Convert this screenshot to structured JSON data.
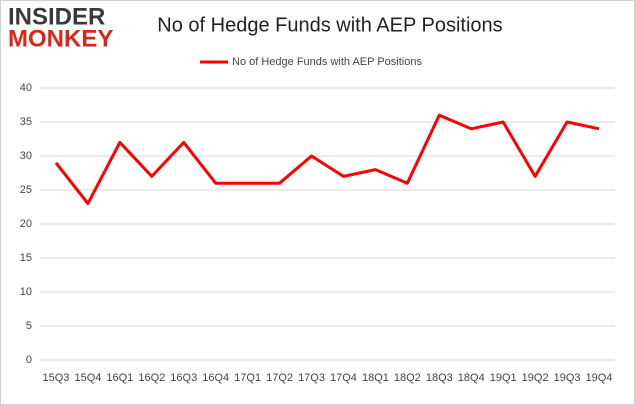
{
  "logo": [
    "INSIDER",
    "MONKEY"
  ],
  "chart_data": {
    "type": "line",
    "title": "No of Hedge Funds with AEP Positions",
    "categories": [
      "15Q3",
      "15Q4",
      "16Q1",
      "16Q2",
      "16Q3",
      "16Q4",
      "17Q1",
      "17Q2",
      "17Q3",
      "17Q4",
      "18Q1",
      "18Q2",
      "18Q3",
      "18Q4",
      "19Q1",
      "19Q2",
      "19Q3",
      "19Q4"
    ],
    "series": [
      {
        "name": "No of Hedge Funds with AEP Positions",
        "color": "#ff0000",
        "values": [
          29,
          23,
          32,
          27,
          32,
          26,
          26,
          26,
          30,
          27,
          28,
          26,
          36,
          34,
          35,
          27,
          35,
          34
        ]
      }
    ],
    "ylim": [
      0,
      40
    ],
    "yticks": [
      0,
      5,
      10,
      15,
      20,
      25,
      30,
      35,
      40
    ],
    "grid": true,
    "legend": "top"
  }
}
